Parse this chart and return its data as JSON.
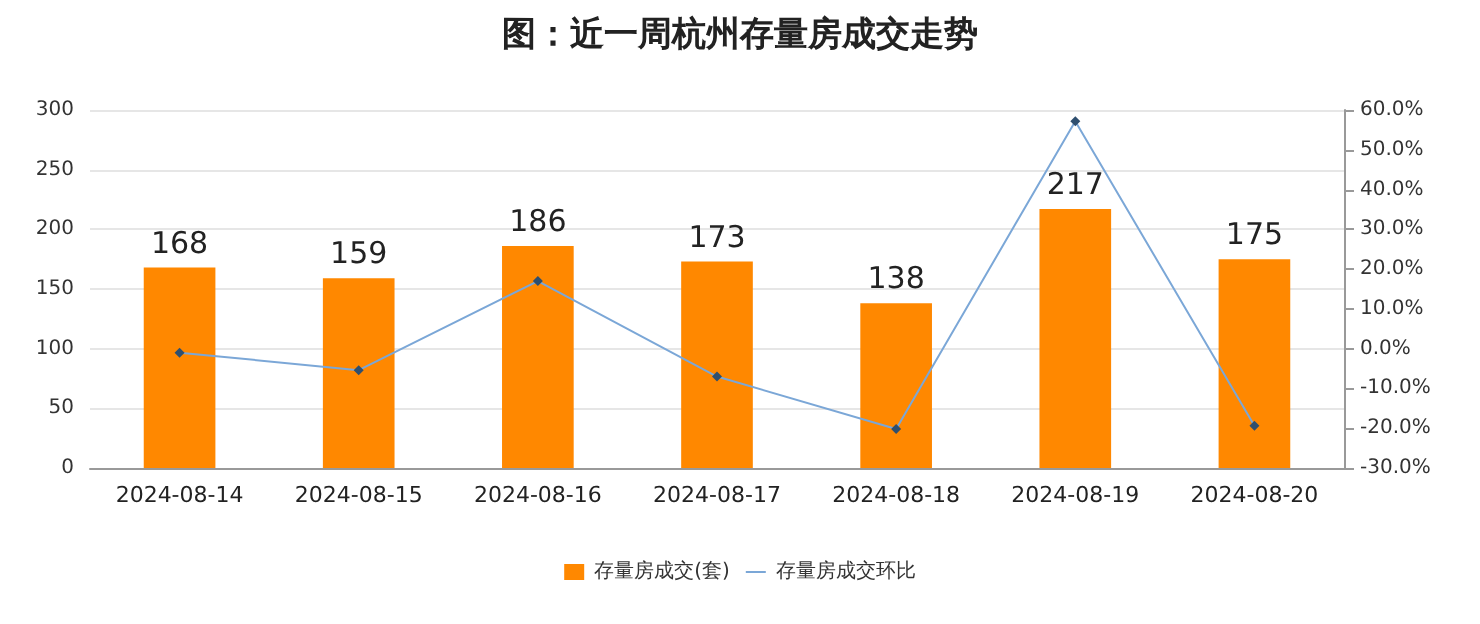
{
  "chart_data": {
    "type": "bar",
    "title": "图：近一周杭州存量房成交走势",
    "categories": [
      "2024-08-14",
      "2024-08-15",
      "2024-08-16",
      "2024-08-17",
      "2024-08-18",
      "2024-08-19",
      "2024-08-20"
    ],
    "series": [
      {
        "name": "存量房成交(套)",
        "color": "#ff8800",
        "values": [
          168,
          159,
          186,
          173,
          138,
          217,
          175
        ],
        "data_labels": true
      },
      {
        "name": "存量房成交环比",
        "type": "line",
        "axis": "y2",
        "color": "#7ba7d7",
        "marker": "diamond",
        "values": [
          -1.0,
          -5.4,
          17.0,
          -7.0,
          -20.2,
          57.2,
          -19.4
        ]
      }
    ],
    "ylim": [
      0,
      300
    ],
    "yticks": [
      0,
      50,
      100,
      150,
      200,
      250,
      300
    ],
    "y2lim": [
      -30,
      60
    ],
    "y2ticks": [
      {
        "value": -30,
        "label": "-30.0%"
      },
      {
        "value": -20,
        "label": "-20.0%"
      },
      {
        "value": -10,
        "label": "-10.0%"
      },
      {
        "value": 0,
        "label": "0.0%"
      },
      {
        "value": 10,
        "label": "10.0%"
      },
      {
        "value": 20,
        "label": "20.0%"
      },
      {
        "value": 30,
        "label": "30.0%"
      },
      {
        "value": 40,
        "label": "40.0%"
      },
      {
        "value": 50,
        "label": "50.0%"
      },
      {
        "value": 60,
        "label": "60.0%"
      }
    ],
    "grid": "y",
    "legend": "bottom"
  }
}
